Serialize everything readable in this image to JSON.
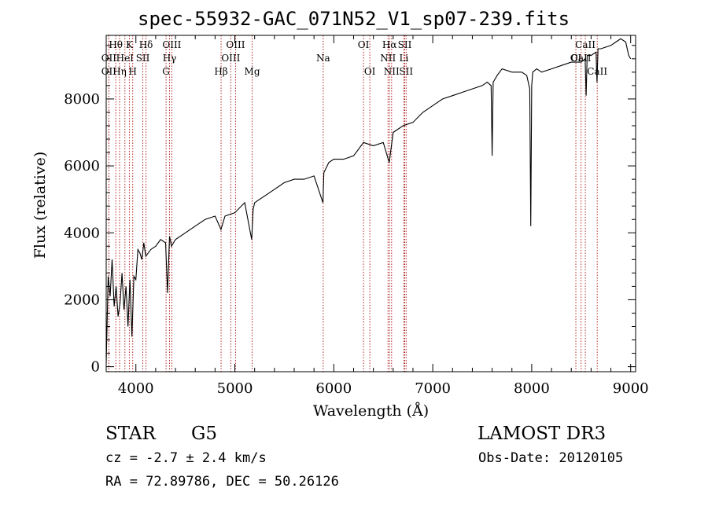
{
  "title": "spec-55932-GAC_071N52_V1_sp07-239.fits",
  "info": {
    "object_class": "STAR",
    "subclass": "G5",
    "survey": "LAMOST DR3",
    "cz": "cz = -2.7 ± 2.4 km/s",
    "obs_date": "Obs-Date: 20120105",
    "radec": "RA =  72.89786, DEC =  50.26126"
  },
  "colors": {
    "line": "#000000",
    "marker": "#b22222",
    "background": "#ffffff"
  },
  "chart_data": {
    "type": "line",
    "title": "spec-55932-GAC_071N52_V1_sp07-239.fits",
    "xlabel": "Wavelength (Å)",
    "ylabel": "Flux (relative)",
    "xlim": [
      3700,
      9050
    ],
    "ylim": [
      -150,
      9900
    ],
    "xticks": [
      4000,
      5000,
      6000,
      7000,
      8000,
      9000
    ],
    "yticks": [
      0,
      2000,
      4000,
      6000,
      8000
    ],
    "x": [
      3700,
      3720,
      3740,
      3760,
      3780,
      3800,
      3820,
      3840,
      3860,
      3880,
      3900,
      3920,
      3940,
      3960,
      3980,
      4000,
      4020,
      4040,
      4060,
      4080,
      4100,
      4150,
      4200,
      4250,
      4300,
      4320,
      4340,
      4360,
      4380,
      4400,
      4500,
      4600,
      4700,
      4800,
      4860,
      4900,
      5000,
      5100,
      5170,
      5185,
      5200,
      5300,
      5400,
      5500,
      5600,
      5700,
      5800,
      5890,
      5900,
      5950,
      6000,
      6100,
      6200,
      6300,
      6400,
      6500,
      6560,
      6600,
      6700,
      6800,
      6900,
      7000,
      7100,
      7200,
      7300,
      7400,
      7500,
      7550,
      7590,
      7600,
      7610,
      7650,
      7700,
      7800,
      7900,
      7950,
      7980,
      7990,
      8000,
      8010,
      8050,
      8100,
      8200,
      8300,
      8400,
      8500,
      8540,
      8550,
      8560,
      8600,
      8650,
      8660,
      8670,
      8700,
      8800,
      8850,
      8900,
      8950,
      8980,
      9000
    ],
    "y": [
      100,
      2700,
      2100,
      3200,
      1800,
      2400,
      1500,
      1900,
      2800,
      1700,
      2400,
      1200,
      2600,
      900,
      2700,
      2600,
      3500,
      3400,
      3200,
      3700,
      3300,
      3500,
      3600,
      3800,
      3700,
      2200,
      3900,
      3600,
      3700,
      3800,
      4000,
      4200,
      4400,
      4500,
      4100,
      4500,
      4600,
      4900,
      3800,
      4700,
      4900,
      5100,
      5300,
      5500,
      5600,
      5600,
      5700,
      4900,
      5800,
      6100,
      6200,
      6200,
      6300,
      6700,
      6600,
      6700,
      6100,
      7000,
      7200,
      7300,
      7600,
      7800,
      8000,
      8100,
      8200,
      8300,
      8400,
      8500,
      8400,
      6300,
      8500,
      8700,
      8900,
      8800,
      8800,
      8700,
      8300,
      4200,
      8400,
      8800,
      8900,
      8800,
      8900,
      9000,
      9100,
      9100,
      9200,
      8100,
      9300,
      9300,
      9400,
      8500,
      9500,
      9500,
      9600,
      9700,
      9800,
      9700,
      9300,
      9200
    ],
    "lines": [
      {
        "label": "Hθ",
        "wavelength": 3797,
        "row": 0
      },
      {
        "label": "OII",
        "wavelength": 3727,
        "row": 1
      },
      {
        "label": "OII",
        "wavelength": 3727,
        "row": 2
      },
      {
        "label": "K",
        "wavelength": 3934,
        "row": 0
      },
      {
        "label": "HeI",
        "wavelength": 3889,
        "row": 1
      },
      {
        "label": "Hη",
        "wavelength": 3835,
        "row": 2
      },
      {
        "label": "Hδ",
        "wavelength": 4102,
        "row": 0
      },
      {
        "label": "SII",
        "wavelength": 4070,
        "row": 1
      },
      {
        "label": "H",
        "wavelength": 3968,
        "row": 2
      },
      {
        "label": "OIII",
        "wavelength": 4363,
        "row": 0
      },
      {
        "label": "Hγ",
        "wavelength": 4340,
        "row": 1
      },
      {
        "label": "G",
        "wavelength": 4305,
        "row": 2
      },
      {
        "label": "OIII",
        "wavelength": 5007,
        "row": 0
      },
      {
        "label": "OIII",
        "wavelength": 4959,
        "row": 1
      },
      {
        "label": "Hβ",
        "wavelength": 4861,
        "row": 2
      },
      {
        "label": "Mg",
        "wavelength": 5175,
        "row": 2
      },
      {
        "label": "Na",
        "wavelength": 5893,
        "row": 1
      },
      {
        "label": "OI",
        "wavelength": 6300,
        "row": 0
      },
      {
        "label": "OI",
        "wavelength": 6364,
        "row": 2
      },
      {
        "label": "Hα",
        "wavelength": 6563,
        "row": 0
      },
      {
        "label": "NII",
        "wavelength": 6548,
        "row": 1
      },
      {
        "label": "NII",
        "wavelength": 6584,
        "row": 2
      },
      {
        "label": "SII",
        "wavelength": 6717,
        "row": 0
      },
      {
        "label": "Li",
        "wavelength": 6708,
        "row": 1
      },
      {
        "label": "SII",
        "wavelength": 6731,
        "row": 2
      },
      {
        "label": "CaII",
        "wavelength": 8542,
        "row": 0
      },
      {
        "label": "OI",
        "wavelength": 8446,
        "row": 1
      },
      {
        "label": "CaII",
        "wavelength": 8498,
        "row": 1
      },
      {
        "label": "CaII",
        "wavelength": 8662,
        "row": 2
      }
    ]
  }
}
